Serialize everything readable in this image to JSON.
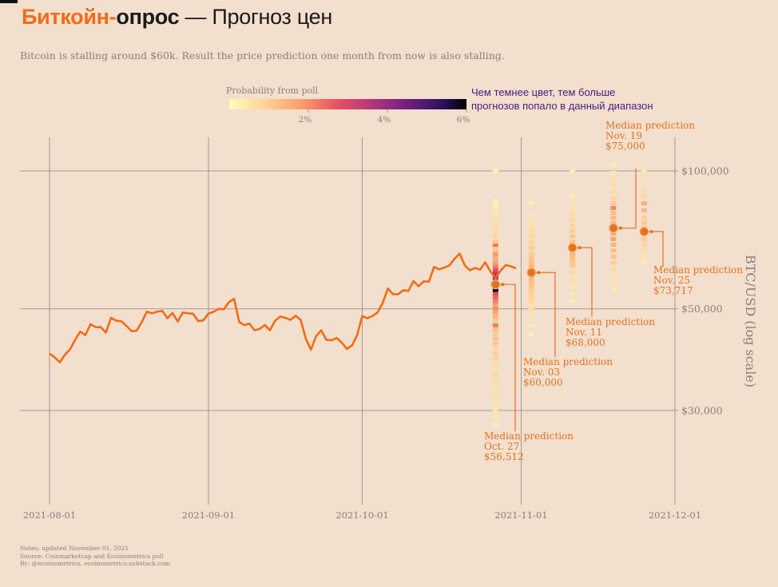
{
  "title": {
    "part1": "Биткойн-",
    "part2": "опрос",
    "part3": " — Прогноз цен"
  },
  "subtitle": "Bitcoin is stalling around $60k. Result the price prediction one month from now is also stalling.",
  "notes": [
    "Notes: updated November 01, 2021",
    "Source: Coinmarketcap and Ecoinometrics poll",
    "By: @ecoinometrics, ecoinometrics.substack.com"
  ],
  "colors": {
    "background": "#f3dfcd",
    "price_line": "#f36b16",
    "annotation": "#e3731f",
    "annotation_purple": "#4b1a7d",
    "grid": "#8c8582",
    "axis_text": "#8a7f78"
  },
  "chart_data": {
    "type": "line",
    "yscale": "log",
    "ylabel": "BTC/USD (log scale)",
    "xlim": [
      "2021-07-31",
      "2021-12-04"
    ],
    "ylim": [
      20000,
      130000
    ],
    "grid": true,
    "x_ticks": [
      "2021-08-01",
      "2021-09-01",
      "2021-10-01",
      "2021-11-01",
      "2021-12-01"
    ],
    "y_ticks": [
      {
        "value": 30000,
        "label": "$30,000"
      },
      {
        "value": 50000,
        "label": "$50,000"
      },
      {
        "value": 100000,
        "label": "$100,000"
      }
    ],
    "price_series": {
      "x": [
        "2021-08-01",
        "2021-08-02",
        "2021-08-03",
        "2021-08-04",
        "2021-08-05",
        "2021-08-06",
        "2021-08-07",
        "2021-08-08",
        "2021-08-09",
        "2021-08-10",
        "2021-08-11",
        "2021-08-12",
        "2021-08-13",
        "2021-08-14",
        "2021-08-15",
        "2021-08-16",
        "2021-08-17",
        "2021-08-18",
        "2021-08-19",
        "2021-08-20",
        "2021-08-21",
        "2021-08-22",
        "2021-08-23",
        "2021-08-24",
        "2021-08-25",
        "2021-08-26",
        "2021-08-27",
        "2021-08-28",
        "2021-08-29",
        "2021-08-30",
        "2021-08-31",
        "2021-09-01",
        "2021-09-02",
        "2021-09-03",
        "2021-09-04",
        "2021-09-05",
        "2021-09-06",
        "2021-09-07",
        "2021-09-08",
        "2021-09-09",
        "2021-09-10",
        "2021-09-11",
        "2021-09-12",
        "2021-09-13",
        "2021-09-14",
        "2021-09-15",
        "2021-09-16",
        "2021-09-17",
        "2021-09-18",
        "2021-09-19",
        "2021-09-20",
        "2021-09-21",
        "2021-09-22",
        "2021-09-23",
        "2021-09-24",
        "2021-09-25",
        "2021-09-26",
        "2021-09-27",
        "2021-09-28",
        "2021-09-29",
        "2021-09-30",
        "2021-10-01",
        "2021-10-02",
        "2021-10-03",
        "2021-10-04",
        "2021-10-05",
        "2021-10-06",
        "2021-10-07",
        "2021-10-08",
        "2021-10-09",
        "2021-10-10",
        "2021-10-11",
        "2021-10-12",
        "2021-10-13",
        "2021-10-14",
        "2021-10-15",
        "2021-10-16",
        "2021-10-17",
        "2021-10-18",
        "2021-10-19",
        "2021-10-20",
        "2021-10-21",
        "2021-10-22",
        "2021-10-23",
        "2021-10-24",
        "2021-10-25",
        "2021-10-26",
        "2021-10-27",
        "2021-10-28",
        "2021-10-29",
        "2021-10-30",
        "2021-10-31"
      ],
      "y": [
        39900,
        39200,
        38200,
        39700,
        40800,
        42800,
        44600,
        43800,
        46300,
        45600,
        45600,
        44400,
        47800,
        47100,
        47000,
        45900,
        44700,
        44800,
        46800,
        49300,
        48900,
        49300,
        49500,
        47700,
        49000,
        46900,
        49100,
        48900,
        48800,
        47000,
        47200,
        48800,
        49300,
        50000,
        49900,
        51700,
        52600,
        46800,
        46100,
        46400,
        44900,
        45200,
        46100,
        44900,
        47100,
        48100,
        47800,
        47300,
        48300,
        47300,
        43000,
        40700,
        43600,
        44900,
        42800,
        42700,
        43200,
        42200,
        40900,
        41600,
        43800,
        48200,
        47700,
        48200,
        49100,
        51500,
        55400,
        53800,
        53800,
        54900,
        54700,
        57500,
        56000,
        57400,
        57300,
        61700,
        61000,
        61500,
        62200,
        64300,
        66000,
        62200,
        60700,
        61400,
        60900,
        63200,
        60300,
        58400,
        60600,
        62300,
        61900,
        61300
      ]
    },
    "poll_labels": [
      "Oct. 27",
      "Nov. 03",
      "Nov. 11",
      "Nov. 19",
      "Nov. 25"
    ],
    "median_predictions": [
      {
        "date": "2021-10-27",
        "label": "Median prediction",
        "period": "Oct. 27",
        "value": 56512,
        "value_label": "$56,512"
      },
      {
        "date": "2021-11-03",
        "label": "Median prediction",
        "period": "Nov. 03",
        "value": 60000,
        "value_label": "$60,000"
      },
      {
        "date": "2021-11-11",
        "label": "Median prediction",
        "period": "Nov. 11",
        "value": 68000,
        "value_label": "$68,000"
      },
      {
        "date": "2021-11-19",
        "label": "Median prediction",
        "period": "Nov. 19",
        "value": 75000,
        "value_label": "$75,000"
      },
      {
        "date": "2021-11-25",
        "label": "Median prediction",
        "period": "Nov. 25",
        "value": 73717,
        "value_label": "$73,717"
      }
    ],
    "poll_heatmap": {
      "type": "heatmap",
      "colorbar_label": "Probability from poll",
      "colorbar_range": [
        0,
        6
      ],
      "colorbar_ticks": [
        "2%",
        "4%",
        "6%"
      ],
      "columns": [
        {
          "date": "2021-10-27",
          "prices": [
            28000,
            29000,
            30000,
            31000,
            32000,
            33000,
            34000,
            35000,
            36000,
            37000,
            38000,
            39000,
            40000,
            41000,
            42000,
            43000,
            44000,
            45000,
            46000,
            47000,
            48000,
            49000,
            50000,
            51000,
            52000,
            53000,
            54000,
            55000,
            56000,
            57000,
            58000,
            59000,
            60000,
            61000,
            62000,
            63000,
            64000,
            65000,
            66000,
            67000,
            68000,
            69000,
            70000,
            72000,
            74000,
            76000,
            78000,
            80000,
            82000,
            84000,
            86000,
            100000
          ],
          "probabilities": [
            0.3,
            0.4,
            0.5,
            0.6,
            0.6,
            0.5,
            0.6,
            0.7,
            0.8,
            0.6,
            0.7,
            0.9,
            1.0,
            0.8,
            1.1,
            1.2,
            1.0,
            1.3,
            2.2,
            1.0,
            1.4,
            1.6,
            2.0,
            1.8,
            2.2,
            2.5,
            2.9,
            5.9,
            3.5,
            3.0,
            3.4,
            4.6,
            3.4,
            2.8,
            2.2,
            1.8,
            1.5,
            1.6,
            1.9,
            1.2,
            1.0,
            2.4,
            1.1,
            0.9,
            0.8,
            0.7,
            0.6,
            0.5,
            0.4,
            0.3,
            0.3,
            0.3
          ]
        },
        {
          "date": "2021-11-03",
          "prices": [
            44000,
            46000,
            48000,
            50000,
            51000,
            52000,
            53000,
            54000,
            55000,
            56000,
            57000,
            58000,
            59000,
            60000,
            61000,
            62000,
            63000,
            64000,
            65000,
            66000,
            68000,
            70000,
            72000,
            74000,
            76000,
            78000,
            80000,
            85000
          ],
          "probabilities": [
            0.3,
            0.4,
            0.5,
            0.7,
            0.6,
            0.8,
            0.9,
            0.9,
            1.0,
            1.1,
            1.2,
            1.3,
            1.3,
            1.5,
            1.4,
            1.4,
            1.2,
            1.2,
            1.1,
            1.0,
            1.0,
            0.9,
            0.8,
            0.7,
            0.6,
            0.5,
            0.4,
            0.3
          ]
        },
        {
          "date": "2021-11-11",
          "prices": [
            52000,
            54000,
            56000,
            58000,
            60000,
            62000,
            63000,
            64000,
            65000,
            66000,
            67000,
            68000,
            69000,
            70000,
            72000,
            74000,
            76000,
            78000,
            80000,
            82000,
            85000,
            88000,
            100000
          ],
          "probabilities": [
            0.3,
            0.4,
            0.5,
            0.6,
            0.8,
            1.0,
            1.1,
            1.2,
            1.3,
            1.4,
            1.5,
            1.5,
            1.4,
            1.2,
            1.1,
            1.0,
            0.9,
            0.8,
            0.7,
            0.6,
            0.5,
            0.4,
            0.3
          ]
        },
        {
          "date": "2021-11-19",
          "prices": [
            55000,
            57000,
            59000,
            61000,
            63000,
            65000,
            67000,
            69000,
            71000,
            73000,
            75000,
            77000,
            79000,
            81000,
            83000,
            85000,
            87000,
            90000,
            93000,
            96000,
            99000,
            103000
          ],
          "probabilities": [
            0.4,
            0.5,
            0.6,
            0.7,
            1.0,
            1.2,
            1.3,
            1.5,
            1.8,
            1.6,
            2.0,
            1.5,
            1.4,
            1.3,
            2.1,
            1.0,
            0.9,
            0.8,
            0.7,
            0.6,
            0.5,
            0.4
          ]
        },
        {
          "date": "2021-11-25",
          "prices": [
            63000,
            65000,
            67000,
            69000,
            71000,
            73000,
            75000,
            77000,
            79000,
            82000,
            85000,
            88000,
            91000,
            95000,
            100000
          ],
          "probabilities": [
            0.4,
            0.5,
            0.7,
            0.8,
            1.0,
            1.3,
            1.2,
            1.1,
            1.0,
            1.4,
            1.5,
            0.8,
            0.7,
            0.5,
            0.4
          ]
        }
      ]
    },
    "annotation_text": [
      "Чем темнее цвет, тем больше",
      "прогнозов попало в данный диапазон"
    ]
  }
}
